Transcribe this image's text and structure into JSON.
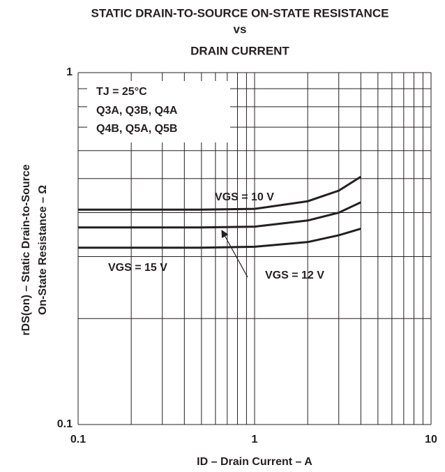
{
  "chart_data": {
    "type": "line",
    "title": [
      "STATIC DRAIN-TO-SOURCE ON-STATE RESISTANCE",
      "vs",
      "DRAIN CURRENT"
    ],
    "x_label": "ID – Drain Current – A",
    "y_label": [
      "rDS(on)  – Static Drain-to-Source",
      "On-State Resistance – Ω"
    ],
    "annotations": [
      "TJ = 25°C",
      "Q3A, Q3B, Q4A",
      "Q4B, Q5A, Q5B"
    ],
    "x": [
      0.1,
      0.5,
      1,
      2,
      3,
      4
    ],
    "series": [
      {
        "name": "VGS = 10 V",
        "color": "#231f20",
        "values": [
          0.408,
          0.408,
          0.41,
          0.431,
          0.462,
          0.506
        ]
      },
      {
        "name": "VGS = 12 V",
        "color": "#231f20",
        "values": [
          0.363,
          0.363,
          0.365,
          0.38,
          0.4,
          0.428
        ]
      },
      {
        "name": "VGS = 15 V",
        "color": "#231f20",
        "values": [
          0.318,
          0.318,
          0.32,
          0.33,
          0.345,
          0.36
        ]
      }
    ],
    "xlim": [
      0.1,
      10
    ],
    "ylim": [
      0.1,
      1
    ],
    "xticks": [
      0.1,
      1,
      10
    ],
    "yticks": [
      0.1,
      1
    ],
    "xminor": [
      0.2,
      0.3,
      0.4,
      0.5,
      0.6,
      0.7,
      0.8,
      0.9,
      2,
      3,
      4,
      5,
      6,
      7,
      8,
      9
    ],
    "yminor": [
      0.2,
      0.3,
      0.4,
      0.5,
      0.6,
      0.7,
      0.8,
      0.9
    ],
    "xscale": "log",
    "yscale": "log",
    "grid": true
  }
}
